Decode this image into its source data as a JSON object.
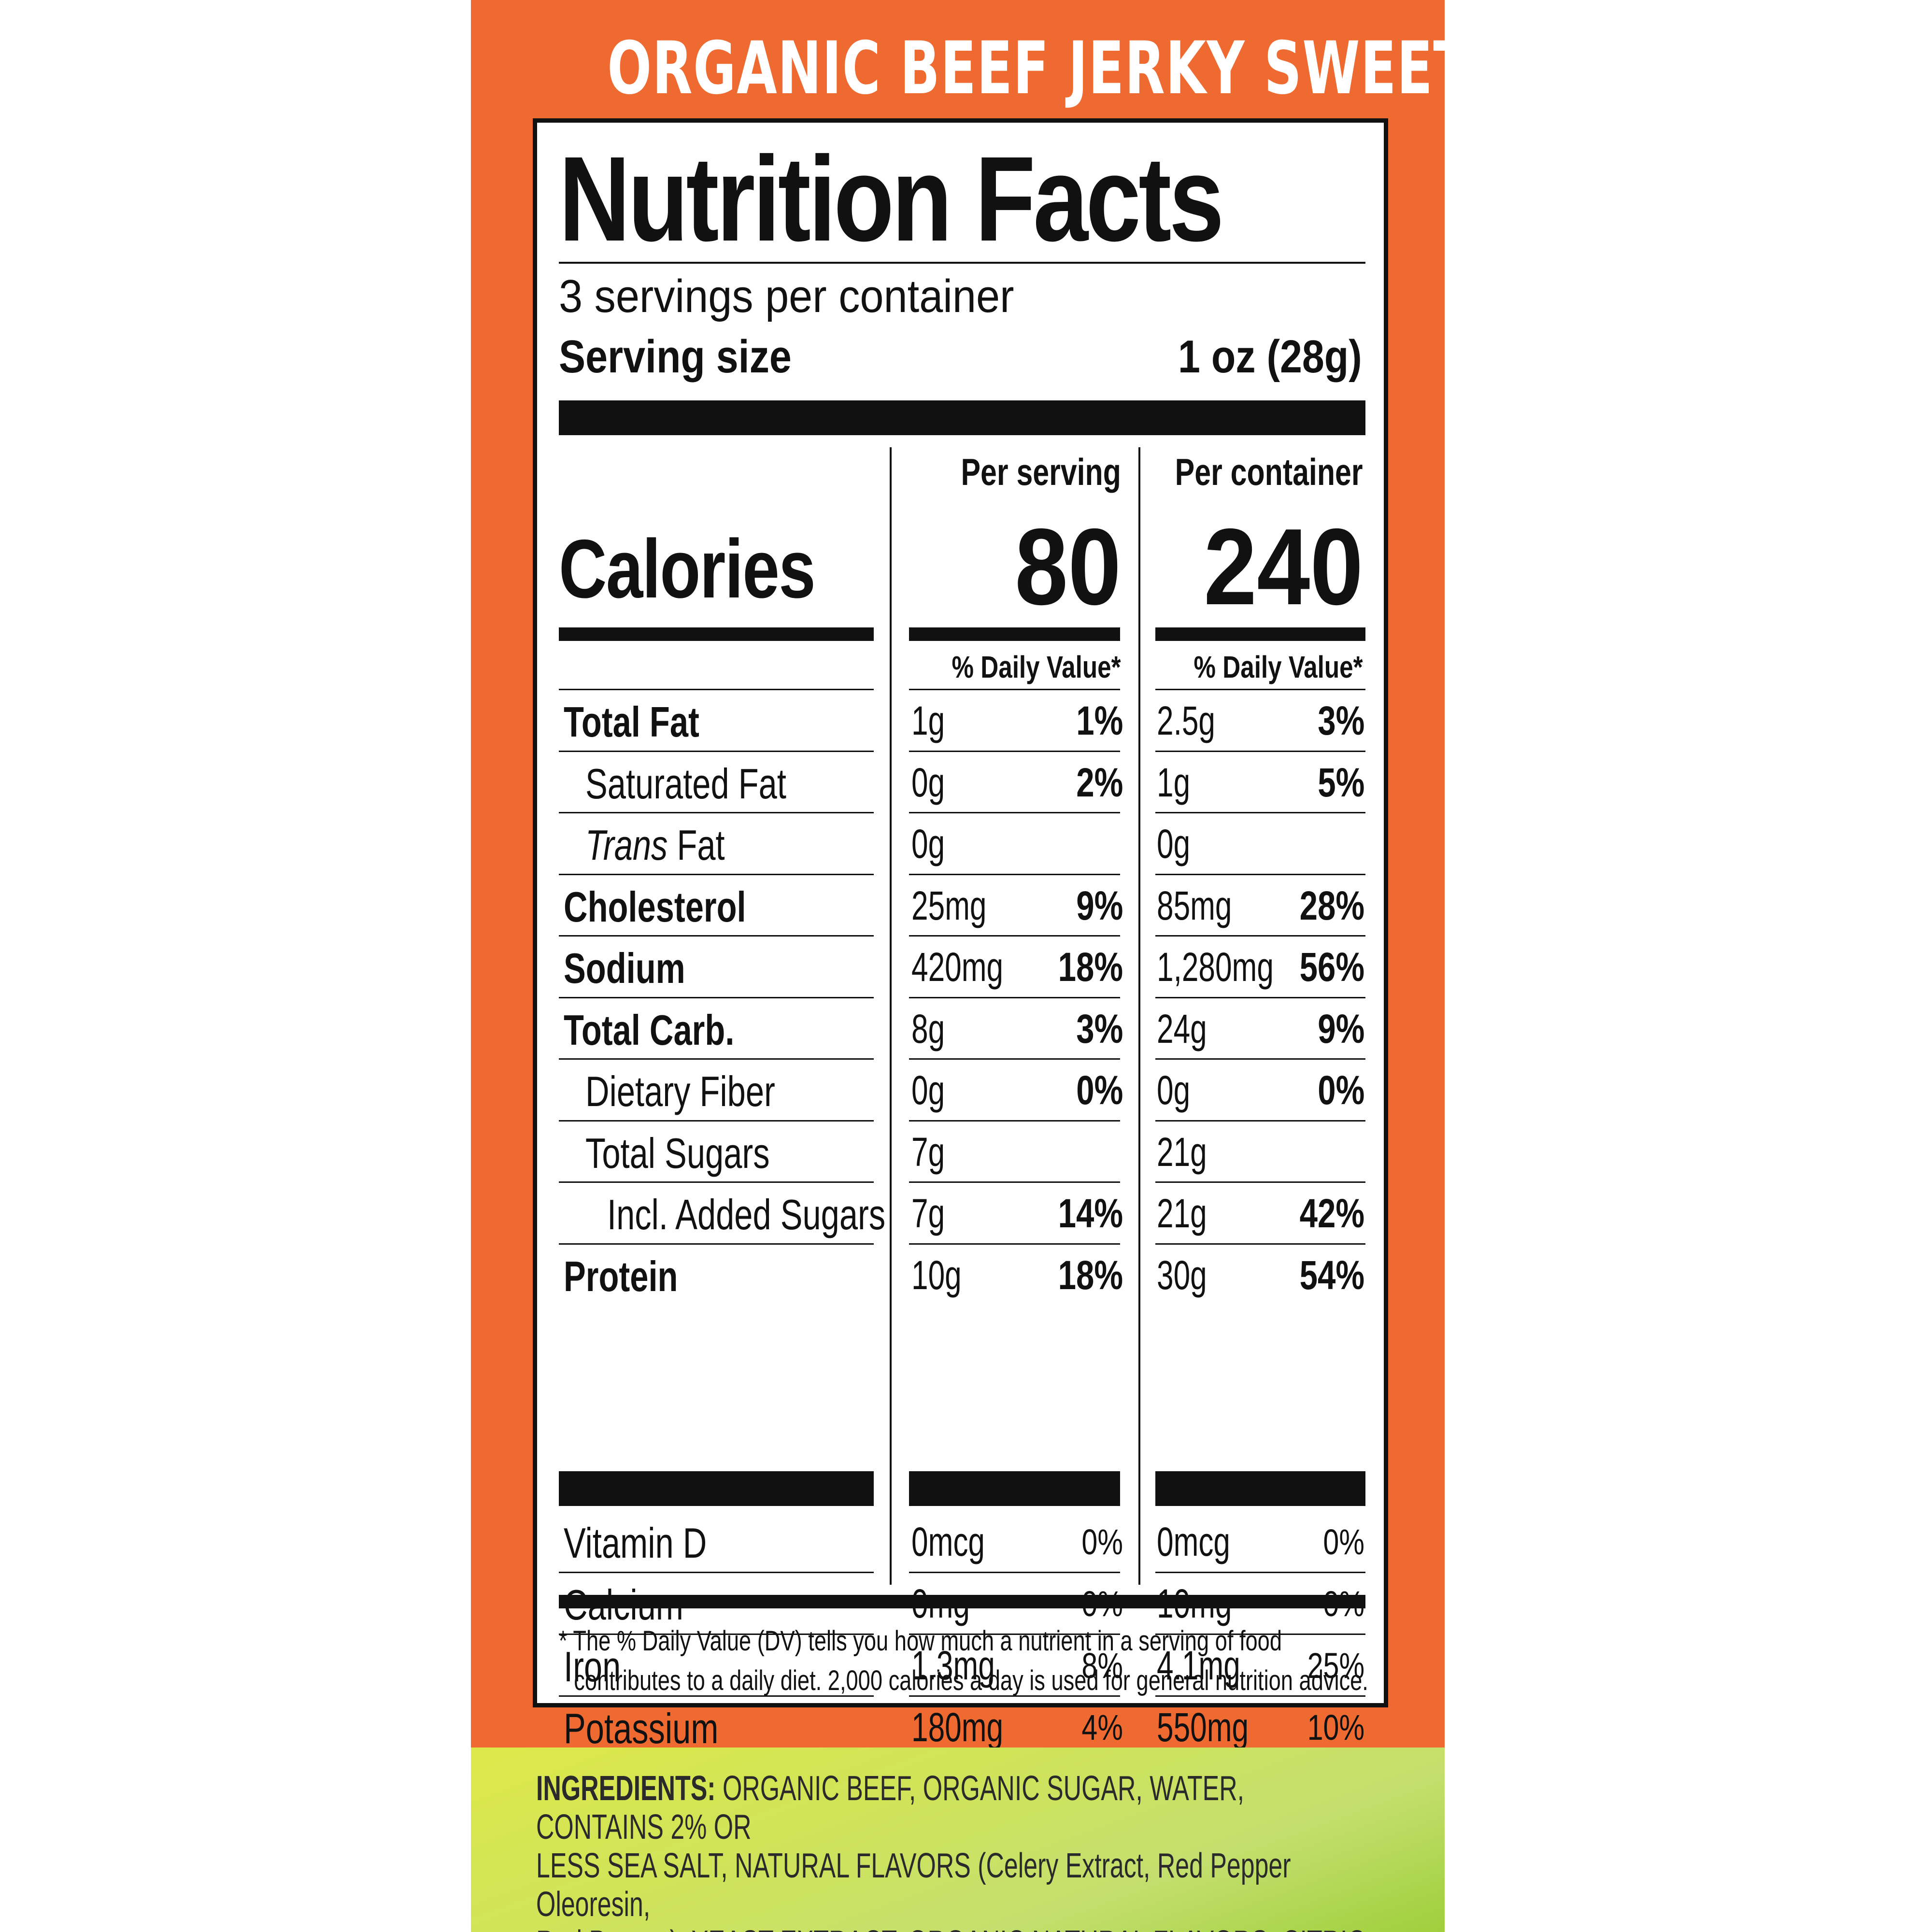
{
  "product_title": "ORGANIC BEEF JERKY SWEET & HOT",
  "nutrition": {
    "title": "Nutrition Facts",
    "servings_per_container": "3 servings per container",
    "serving_size_label": "Serving size",
    "serving_size_value": "1 oz (28g)",
    "per_serving_label": "Per serving",
    "per_container_label": "Per container",
    "calories_label": "Calories",
    "calories_serving": "80",
    "calories_container": "240",
    "dv_label_serving": "% Daily Value*",
    "dv_label_container": "% Daily Value*",
    "rows": [
      {
        "name": "Total Fat",
        "amt_s": "1g",
        "pct_s": "1%",
        "amt_c": "2.5g",
        "pct_c": "3%"
      },
      {
        "name": "Saturated Fat",
        "amt_s": "0g",
        "pct_s": "2%",
        "amt_c": "1g",
        "pct_c": "5%"
      },
      {
        "name_italic": "Trans",
        "name_rest": " Fat",
        "amt_s": "0g",
        "pct_s": "",
        "amt_c": "0g",
        "pct_c": ""
      },
      {
        "name": "Cholesterol",
        "amt_s": "25mg",
        "pct_s": "9%",
        "amt_c": "85mg",
        "pct_c": "28%"
      },
      {
        "name": "Sodium",
        "amt_s": "420mg",
        "pct_s": "18%",
        "amt_c": "1,280mg",
        "pct_c": "56%"
      },
      {
        "name": "Total Carb.",
        "amt_s": "8g",
        "pct_s": "3%",
        "amt_c": "24g",
        "pct_c": "9%"
      },
      {
        "name": "Dietary Fiber",
        "amt_s": "0g",
        "pct_s": "0%",
        "amt_c": "0g",
        "pct_c": "0%"
      },
      {
        "name": "Total Sugars",
        "amt_s": "7g",
        "pct_s": "",
        "amt_c": "21g",
        "pct_c": ""
      },
      {
        "name": "Incl. Added Sugars",
        "amt_s": "7g",
        "pct_s": "14%",
        "amt_c": "21g",
        "pct_c": "42%"
      },
      {
        "name": "Protein",
        "amt_s": "10g",
        "pct_s": "18%",
        "amt_c": "30g",
        "pct_c": "54%"
      }
    ],
    "vitamins": [
      {
        "name": "Vitamin D",
        "amt_s": "0mcg",
        "pct_s": "0%",
        "amt_c": "0mcg",
        "pct_c": "0%"
      },
      {
        "name": "Calcium",
        "amt_s": "0mg",
        "pct_s": "0%",
        "amt_c": "10mg",
        "pct_c": "0%"
      },
      {
        "name": "Iron",
        "amt_s": "1.3mg",
        "pct_s": "8%",
        "amt_c": "4.1mg",
        "pct_c": "25%"
      },
      {
        "name": "Potassium",
        "amt_s": "180mg",
        "pct_s": "4%",
        "amt_c": "550mg",
        "pct_c": "10%"
      }
    ],
    "footnote_line1": "* The % Daily Value (DV) tells you how much a nutrient in a serving of food",
    "footnote_line2": "contributes to a daily diet. 2,000 calories a day is used for general nutrition advice."
  },
  "ingredients": {
    "label": "INGREDIENTS:",
    "line1": " ORGANIC BEEF, ORGANIC SUGAR, WATER, CONTAINS 2% OR",
    "line2": "LESS SEA SALT, NATURAL FLAVORS (Celery Extract, Red Pepper Oleoresin,",
    "line3": "Red Pepper), YEAST EXTRACT, ORGANIC NATURAL FLAVORS, CITRIC ACID."
  },
  "colors": {
    "panel_orange": "#ee6a30",
    "ink": "#111111",
    "ingredients_green": "#cfe35a"
  }
}
